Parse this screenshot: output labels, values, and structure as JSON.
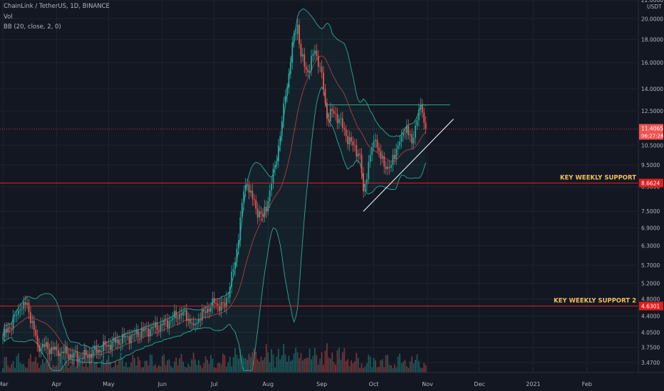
{
  "header": {
    "symbol_line": "ChainLink / TetherUS, 1D, BINANCE",
    "volume_label": "Vol",
    "bb_label": "BB (20, close, 2, 0)"
  },
  "colors": {
    "background": "#131722",
    "up_candle": "#26a69a",
    "down_candle": "#ef5350",
    "support_line": "#e01d1d",
    "bb_band": "#2ea89a",
    "bb_basis": "#b33a46",
    "trendline": "#2fa37a",
    "grid": "#1f2330",
    "axis_text": "#b2b5be"
  },
  "chart_data": {
    "type": "candlestick",
    "scale": "log",
    "currency": "USDT",
    "ylim": [
      3.3,
      22.0
    ],
    "y_ticks": [
      "22.0000",
      "20.0000",
      "18.0000",
      "16.0000",
      "14.0000",
      "12.5000",
      "10.5000",
      "9.5000",
      "8.5000",
      "7.5000",
      "6.9000",
      "6.3000",
      "5.7000",
      "5.2000",
      "4.8000",
      "4.4000",
      "4.0500",
      "3.7500",
      "3.4700"
    ],
    "x_ticks": [
      "Mar",
      "Apr",
      "May",
      "Jun",
      "Jul",
      "Aug",
      "Sep",
      "Oct",
      "Nov",
      "Dec",
      "2021",
      "Feb"
    ],
    "x_tick_index": [
      0,
      31,
      61,
      92,
      122,
      153,
      184,
      214,
      245,
      275,
      306,
      337
    ],
    "grid": true,
    "price_tag": {
      "value": "11.4065",
      "time": "06:27:26"
    },
    "support_levels": [
      {
        "label": "KEY WEEKLY SUPPORT",
        "value": "8.6624"
      },
      {
        "label": "KEY WEEKLY SUPPORT 2",
        "value": "4.6301"
      }
    ],
    "resistance_line": {
      "from_index": 186,
      "to_index": 258,
      "value": 12.9
    },
    "ascending_trendline": {
      "from": [
        208,
        7.5
      ],
      "to": [
        260,
        12.0
      ]
    },
    "key_points": [
      {
        "index": 0,
        "close": 3.95
      },
      {
        "index": 10,
        "close": 4.55
      },
      {
        "index": 14,
        "close": 4.7
      },
      {
        "index": 20,
        "close": 3.8
      },
      {
        "index": 31,
        "close": 3.7
      },
      {
        "index": 45,
        "close": 3.55
      },
      {
        "index": 61,
        "close": 3.8
      },
      {
        "index": 75,
        "close": 4.0
      },
      {
        "index": 92,
        "close": 4.2
      },
      {
        "index": 104,
        "close": 4.5
      },
      {
        "index": 110,
        "close": 4.2
      },
      {
        "index": 116,
        "close": 4.5
      },
      {
        "index": 122,
        "close": 4.7
      },
      {
        "index": 128,
        "close": 4.6
      },
      {
        "index": 134,
        "close": 5.8
      },
      {
        "index": 139,
        "close": 8.3
      },
      {
        "index": 141,
        "close": 8.6
      },
      {
        "index": 146,
        "close": 7.6
      },
      {
        "index": 150,
        "close": 7.3
      },
      {
        "index": 153,
        "close": 7.9
      },
      {
        "index": 157,
        "close": 9.5
      },
      {
        "index": 160,
        "close": 11.0
      },
      {
        "index": 163,
        "close": 13.5
      },
      {
        "index": 166,
        "close": 16.0
      },
      {
        "index": 168,
        "close": 18.5
      },
      {
        "index": 170,
        "close": 19.4
      },
      {
        "index": 172,
        "close": 16.5
      },
      {
        "index": 176,
        "close": 15.2
      },
      {
        "index": 180,
        "close": 17.0
      },
      {
        "index": 184,
        "close": 15.2
      },
      {
        "index": 187,
        "close": 12.0
      },
      {
        "index": 190,
        "close": 12.5
      },
      {
        "index": 194,
        "close": 12.0
      },
      {
        "index": 198,
        "close": 11.0
      },
      {
        "index": 202,
        "close": 10.5
      },
      {
        "index": 206,
        "close": 10.0
      },
      {
        "index": 208,
        "close": 8.3
      },
      {
        "index": 212,
        "close": 10.0
      },
      {
        "index": 215,
        "close": 10.8
      },
      {
        "index": 218,
        "close": 9.8
      },
      {
        "index": 221,
        "close": 9.3
      },
      {
        "index": 224,
        "close": 9.5
      },
      {
        "index": 227,
        "close": 10.3
      },
      {
        "index": 230,
        "close": 11.0
      },
      {
        "index": 233,
        "close": 11.6
      },
      {
        "index": 236,
        "close": 10.6
      },
      {
        "index": 238,
        "close": 11.6
      },
      {
        "index": 240,
        "close": 12.6
      },
      {
        "index": 242,
        "close": 12.4
      },
      {
        "index": 244,
        "close": 11.4
      }
    ]
  }
}
